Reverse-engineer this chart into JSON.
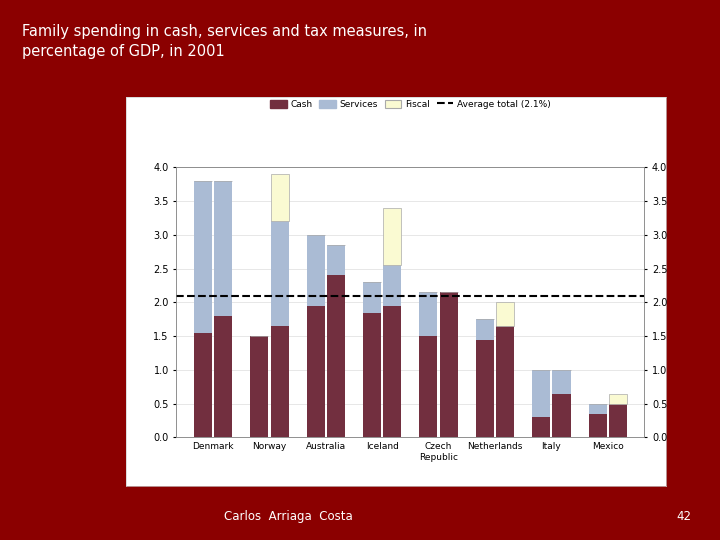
{
  "title": "Family spending in cash, services and tax measures, in\npercentage of GDP, in 2001",
  "background_color": "#8B0000",
  "chart_bg": "#ffffff",
  "average_line": 2.1,
  "average_label": "Average total (2.1%)",
  "countries": [
    "Denmark",
    "Norway",
    "Australia",
    "Iceland",
    "Czech\nRepublic",
    "Netherlands",
    "Italy",
    "Mexico"
  ],
  "bar1_cash": [
    1.55,
    1.5,
    1.95,
    1.85,
    1.5,
    1.45,
    0.3,
    0.35
  ],
  "bar1_services": [
    2.25,
    0.0,
    1.05,
    0.45,
    0.65,
    0.3,
    0.7,
    0.15
  ],
  "bar1_fiscal": [
    0.0,
    0.0,
    0.0,
    0.0,
    0.0,
    0.0,
    0.0,
    0.0
  ],
  "bar2_cash": [
    1.8,
    1.65,
    2.4,
    1.95,
    2.15,
    1.65,
    0.65,
    0.5
  ],
  "bar2_services": [
    2.0,
    1.55,
    0.45,
    0.6,
    0.0,
    0.0,
    0.35,
    0.0
  ],
  "bar2_fiscal": [
    0.0,
    0.7,
    0.0,
    0.85,
    0.0,
    0.35,
    0.0,
    0.15
  ],
  "cash_color": "#722F3F",
  "services_color": "#AABBD4",
  "fiscal_color": "#FAFAD2",
  "fiscal_edge_color": "#AAAAAA",
  "ylim": [
    0.0,
    4.0
  ],
  "yticks": [
    0.0,
    0.5,
    1.0,
    1.5,
    2.0,
    2.5,
    3.0,
    3.5,
    4.0
  ],
  "footnote": "Carlos  Arriaga  Costa",
  "page_num": "42"
}
